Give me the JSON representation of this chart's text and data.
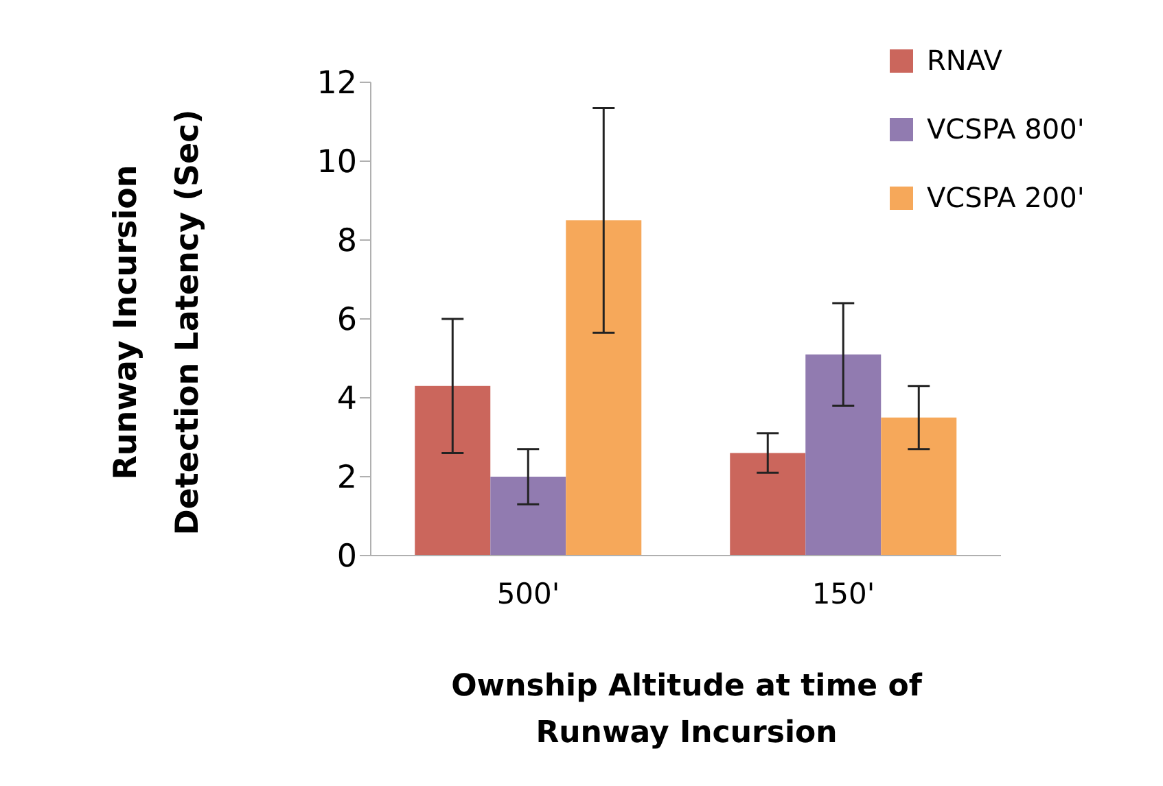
{
  "chart_data": {
    "type": "bar",
    "xlabel": "Ownship Altitude at time of Runway Incursion",
    "ylabel": "Runway Incursion Detection Latency (Sec)",
    "categories": [
      "500'",
      "150'"
    ],
    "series": [
      {
        "name": "RNAV",
        "color": "#cb665c",
        "values": [
          4.3,
          2.6
        ],
        "errors": [
          1.7,
          0.5
        ]
      },
      {
        "name": "VCSPA 800'",
        "color": "#917bb0",
        "values": [
          2.0,
          5.1
        ],
        "errors": [
          0.7,
          1.3
        ]
      },
      {
        "name": "VCSPA 200'",
        "color": "#f6a85a",
        "values": [
          8.5,
          3.5
        ],
        "errors": [
          2.85,
          0.8
        ]
      }
    ],
    "ylim": [
      0,
      12
    ],
    "yticks": [
      0,
      2,
      4,
      6,
      8,
      10,
      12
    ],
    "legend": "top right",
    "grid": false
  }
}
